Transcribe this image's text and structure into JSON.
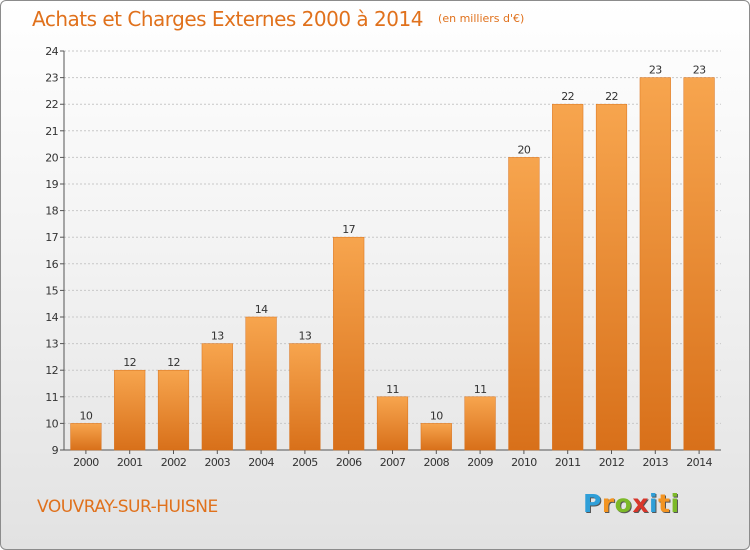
{
  "title": "Achats et Charges Externes 2000 à 2014",
  "unit": "(en milliers d'€)",
  "commune": "VOUVRAY-SUR-HUISNE",
  "brand": {
    "text": "Proxiti",
    "letters": [
      "P",
      "r",
      "o",
      "x",
      "i",
      "t",
      "i"
    ],
    "colors": [
      "#2f9fd8",
      "#f29422",
      "#7cb928",
      "#d8362b",
      "#2f9fd8",
      "#f29422",
      "#7cb928"
    ]
  },
  "colors": {
    "accent": "#e0711c",
    "bar_light": "#f7a54e",
    "bar_dark": "#d8701a"
  },
  "chart_data": {
    "type": "bar",
    "title": "Achats et Charges Externes 2000 à 2014",
    "subtitle": "(en milliers d'€)",
    "categories": [
      "2000",
      "2001",
      "2002",
      "2003",
      "2004",
      "2005",
      "2006",
      "2007",
      "2008",
      "2009",
      "2010",
      "2011",
      "2012",
      "2013",
      "2014"
    ],
    "values": [
      10,
      12,
      12,
      13,
      14,
      13,
      17,
      11,
      10,
      11,
      20,
      22,
      22,
      23,
      23
    ],
    "ylim": [
      9,
      24
    ],
    "yticks": [
      9,
      10,
      11,
      12,
      13,
      14,
      15,
      16,
      17,
      18,
      19,
      20,
      21,
      22,
      23,
      24
    ],
    "grid": true,
    "legend": "none"
  }
}
